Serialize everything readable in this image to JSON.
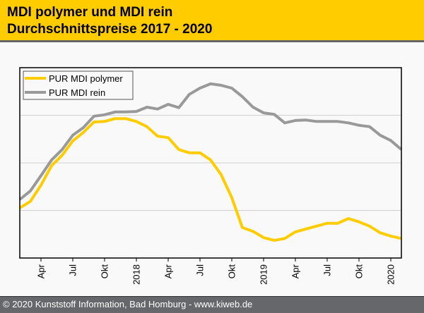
{
  "header": {
    "title_line1": "MDI polymer und MDI rein",
    "title_line2": "Durchschnittspreise 2017 - 2020"
  },
  "footer": {
    "copyright": "© 2020 Kunststoff Information, Bad Homburg - www.kiweb.de"
  },
  "colors": {
    "header_bg": "#ffcc00",
    "footer_bg": "#66676b",
    "polymer": "#ffcc00",
    "rein": "#999999"
  },
  "chart_data": {
    "type": "line",
    "title": "MDI polymer und MDI rein Durchschnittspreise 2017 - 2020",
    "xlabel": "",
    "ylabel": "",
    "y_units": "relative index (no axis labels shown; gridline units)",
    "ylim": [
      0,
      4
    ],
    "y_gridlines": [
      1,
      2,
      3
    ],
    "grid": true,
    "legend_position": "top-left",
    "x": [
      "2017-02",
      "2017-03",
      "2017-04",
      "2017-05",
      "2017-06",
      "2017-07",
      "2017-08",
      "2017-09",
      "2017-10",
      "2017-11",
      "2017-12",
      "2018-01",
      "2018-02",
      "2018-03",
      "2018-04",
      "2018-05",
      "2018-06",
      "2018-07",
      "2018-08",
      "2018-09",
      "2018-10",
      "2018-11",
      "2018-12",
      "2019-01",
      "2019-02",
      "2019-03",
      "2019-04",
      "2019-05",
      "2019-06",
      "2019-07",
      "2019-08",
      "2019-09",
      "2019-10",
      "2019-11",
      "2019-12",
      "2020-01",
      "2020-02"
    ],
    "x_ticks": [
      {
        "index": 2,
        "label": "Apr"
      },
      {
        "index": 5,
        "label": "Jul"
      },
      {
        "index": 8,
        "label": "Okt"
      },
      {
        "index": 11,
        "label": "2018"
      },
      {
        "index": 14,
        "label": "Apr"
      },
      {
        "index": 17,
        "label": "Jul"
      },
      {
        "index": 20,
        "label": "Okt"
      },
      {
        "index": 23,
        "label": "2019"
      },
      {
        "index": 26,
        "label": "Apr"
      },
      {
        "index": 29,
        "label": "Jul"
      },
      {
        "index": 32,
        "label": "Okt"
      },
      {
        "index": 35,
        "label": "2020"
      }
    ],
    "series": [
      {
        "name": "PUR MDI polymer",
        "color": "#ffcc00",
        "values": [
          1.05,
          1.19,
          1.53,
          1.94,
          2.16,
          2.46,
          2.64,
          2.86,
          2.87,
          2.93,
          2.93,
          2.87,
          2.76,
          2.56,
          2.53,
          2.28,
          2.21,
          2.21,
          2.06,
          1.75,
          1.27,
          0.64,
          0.56,
          0.43,
          0.37,
          0.41,
          0.55,
          0.61,
          0.67,
          0.73,
          0.73,
          0.83,
          0.76,
          0.67,
          0.53,
          0.46,
          0.41
        ]
      },
      {
        "name": "PUR MDI rein",
        "color": "#999999",
        "values": [
          1.23,
          1.41,
          1.73,
          2.06,
          2.28,
          2.58,
          2.74,
          2.98,
          3.01,
          3.07,
          3.07,
          3.08,
          3.17,
          3.13,
          3.23,
          3.16,
          3.44,
          3.57,
          3.66,
          3.63,
          3.57,
          3.39,
          3.17,
          3.05,
          3.02,
          2.84,
          2.89,
          2.9,
          2.87,
          2.87,
          2.87,
          2.84,
          2.79,
          2.76,
          2.58,
          2.47,
          2.28
        ]
      }
    ]
  }
}
